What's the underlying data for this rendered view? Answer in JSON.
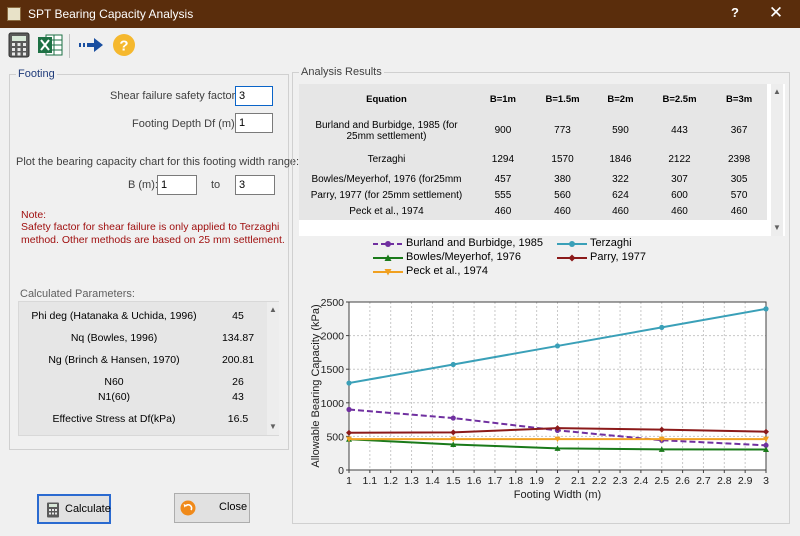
{
  "window": {
    "title": "SPT Bearing Capacity Analysis",
    "help_glyph": "?",
    "close_glyph": "✕"
  },
  "toolbar": {
    "icons": [
      "calculator-icon",
      "excel-icon",
      "arrow-right-icon",
      "help-icon"
    ]
  },
  "footing": {
    "group_title": "Footing",
    "safety_label": "Shear failure safety factor:",
    "safety_value": "3",
    "depth_label": "Footing Depth Df (m):",
    "depth_value": "1",
    "range_label": "Plot the bearing capacity chart for this footing width range:",
    "b_label": "B (m):",
    "b_from": "1",
    "to_label": "to",
    "b_to": "3",
    "note_title": "Note:",
    "note_line1": "Safety factor for shear failure is only applied to Terzaghi",
    "note_line2": "method. Other methods are based on 25 mm settlement.",
    "params_title": "Calculated Parameters:",
    "params": [
      {
        "name": "Phi deg (Hatanaka & Uchida, 1996)",
        "value": "45"
      },
      {
        "name": "Nq (Bowles, 1996)",
        "value": "134.87"
      },
      {
        "name": "Ng (Brinch & Hansen, 1970)",
        "value": "200.81"
      },
      {
        "name": "N60",
        "value": "26"
      },
      {
        "name": "N1(60)",
        "value": "43"
      },
      {
        "name": "Effective Stress at Df(kPa)",
        "value": "16.5"
      }
    ]
  },
  "results": {
    "group_title": "Analysis Results",
    "headers": [
      "Equation",
      "B=1m",
      "B=1.5m",
      "B=2m",
      "B=2.5m",
      "B=3m"
    ],
    "rows": [
      {
        "eq_line1": "Burland and Burbidge, 1985 (for",
        "eq_line2": "25mm settlement)",
        "v": [
          "900",
          "773",
          "590",
          "443",
          "367"
        ]
      },
      {
        "eq_line1": "Terzaghi",
        "eq_line2": "",
        "v": [
          "1294",
          "1570",
          "1846",
          "2122",
          "2398"
        ]
      },
      {
        "eq_line1": "Bowles/Meyerhof, 1976 (for25mm",
        "eq_line2": "",
        "v": [
          "457",
          "380",
          "322",
          "307",
          "305"
        ]
      },
      {
        "eq_line1": "Parry, 1977 (for 25mm settlement)",
        "eq_line2": "",
        "v": [
          "555",
          "560",
          "624",
          "600",
          "570"
        ]
      },
      {
        "eq_line1": "Peck et al., 1974",
        "eq_line2": "",
        "v": [
          "460",
          "460",
          "460",
          "460",
          "460"
        ]
      }
    ]
  },
  "chart_data": {
    "type": "line",
    "xlabel": "Footing Width (m)",
    "ylabel": "Allowable Bearing Capacity (kPa)",
    "xlim": [
      1,
      3
    ],
    "ylim": [
      0,
      2500
    ],
    "grid": true,
    "legend_position": "top",
    "x_ticks": [
      "1",
      "1.1",
      "1.2",
      "1.3",
      "1.4",
      "1.5",
      "1.6",
      "1.7",
      "1.8",
      "1.9",
      "2",
      "2.1",
      "2.2",
      "2.3",
      "2.4",
      "2.5",
      "2.6",
      "2.7",
      "2.8",
      "2.9",
      "3"
    ],
    "y_ticks": [
      "0",
      "500",
      "1000",
      "1500",
      "2000",
      "2500"
    ],
    "x": [
      1,
      1.5,
      2,
      2.5,
      3
    ],
    "series": [
      {
        "name": "Burland and Burbidge, 1985",
        "color": "#7030a0",
        "dashed": true,
        "marker": "circle",
        "values": [
          900,
          773,
          590,
          443,
          367
        ]
      },
      {
        "name": "Terzaghi",
        "color": "#3aa0b8",
        "dashed": false,
        "marker": "circle",
        "values": [
          1294,
          1570,
          1846,
          2122,
          2398
        ]
      },
      {
        "name": "Bowles/Meyerhof, 1976",
        "color": "#1a7a1a",
        "dashed": false,
        "marker": "triangle",
        "values": [
          457,
          380,
          322,
          307,
          305
        ]
      },
      {
        "name": "Parry, 1977",
        "color": "#8b1a1a",
        "dashed": false,
        "marker": "diamond",
        "values": [
          555,
          560,
          624,
          600,
          570
        ]
      },
      {
        "name": "Peck et al., 1974",
        "color": "#f0a020",
        "dashed": false,
        "marker": "triangle-down",
        "values": [
          460,
          460,
          460,
          460,
          460
        ]
      }
    ]
  },
  "buttons": {
    "calculate": "Calculate",
    "close": "Close"
  }
}
